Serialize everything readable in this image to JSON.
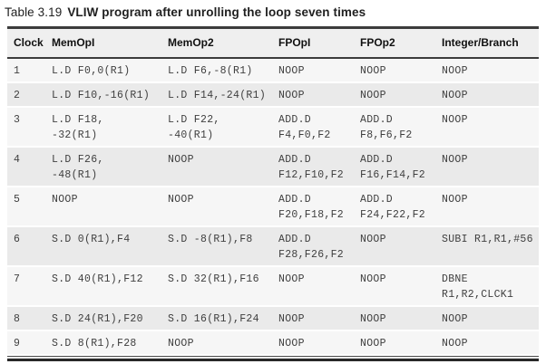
{
  "title": {
    "label": "Table 3.19",
    "text": "VLIW program after unrolling the loop seven times"
  },
  "table": {
    "headers": [
      "Clock",
      "MemOpI",
      "MemOp2",
      "FPOpI",
      "FPOp2",
      "Integer/Branch"
    ],
    "rows": [
      {
        "cells": [
          "1",
          "L.D F0,0(R1)",
          "L.D F6,-8(R1)",
          "NOOP",
          "NOOP",
          "NOOP"
        ]
      },
      {
        "cells": [
          "2",
          "L.D F10,-16(R1)",
          "L.D F14,-24(R1)",
          "NOOP",
          "NOOP",
          "NOOP"
        ]
      },
      {
        "cells": [
          "3",
          "L.D F18,\n-32(R1)",
          "L.D F22,\n-40(R1)",
          "ADD.D\nF4,F0,F2",
          "ADD.D\nF8,F6,F2",
          "NOOP"
        ]
      },
      {
        "cells": [
          "4",
          "L.D F26,\n-48(R1)",
          "NOOP",
          "ADD.D\nF12,F10,F2",
          "ADD.D\nF16,F14,F2",
          "NOOP"
        ]
      },
      {
        "cells": [
          "5",
          "NOOP",
          "NOOP",
          "ADD.D\nF20,F18,F2",
          "ADD.D\nF24,F22,F2",
          "NOOP"
        ]
      },
      {
        "cells": [
          "6",
          "S.D 0(R1),F4",
          "S.D -8(R1),F8",
          "ADD.D\nF28,F26,F2",
          "NOOP",
          "SUBI R1,R1,#56"
        ]
      },
      {
        "cells": [
          "7",
          "S.D 40(R1),F12",
          "S.D 32(R1),F16",
          "NOOP",
          "NOOP",
          "DBNE\nR1,R2,CLCK1"
        ]
      },
      {
        "cells": [
          "8",
          "S.D 24(R1),F20",
          "S.D 16(R1),F24",
          "NOOP",
          "NOOP",
          "NOOP"
        ]
      },
      {
        "cells": [
          "9",
          "S.D 8(R1),F28",
          "NOOP",
          "NOOP",
          "NOOP",
          "NOOP"
        ]
      }
    ]
  },
  "colors": {
    "header_bg": "#efefef",
    "row_odd": "#f6f6f6",
    "row_even": "#eaeaea",
    "rule_dark": "#3c3c3c",
    "body_text": "#3f3f3f",
    "header_text": "#111111",
    "page_bg": "#ffffff"
  }
}
